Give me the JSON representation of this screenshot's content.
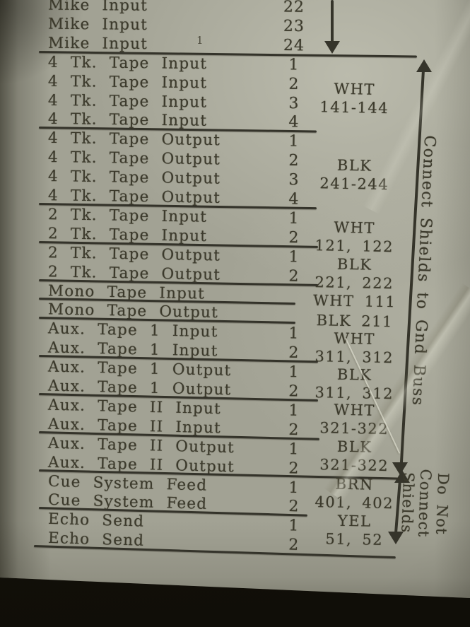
{
  "photo": {
    "description": "Photograph of a printed recording-console wiring chart lying on a dark surface",
    "colors": {
      "paper": "#a2a294",
      "ink": "#3c3a2c",
      "background": "#15120b"
    }
  },
  "document": {
    "sections": [
      {
        "rows": [
          {
            "label": "Mike Input",
            "pin": "22"
          },
          {
            "label": "Mike Input",
            "pin": "23"
          },
          {
            "label": "Mike Input",
            "pin": "24"
          }
        ]
      },
      {
        "rows": [
          {
            "label": "4 Tk. Tape Input",
            "pin": "1"
          },
          {
            "label": "4 Tk. Tape Input",
            "pin": "2"
          },
          {
            "label": "4 Tk. Tape Input",
            "pin": "3"
          },
          {
            "label": "4 Tk. Tape Input",
            "pin": "4"
          }
        ]
      },
      {
        "rows": [
          {
            "label": "4 Tk. Tape Output",
            "pin": "1"
          },
          {
            "label": "4 Tk. Tape Output",
            "pin": "2"
          },
          {
            "label": "4 Tk. Tape Output",
            "pin": "3"
          },
          {
            "label": "4 Tk. Tape Output",
            "pin": "4"
          }
        ]
      },
      {
        "rows": [
          {
            "label": "2 Tk. Tape Input",
            "pin": "1"
          },
          {
            "label": "2 Tk. Tape Input",
            "pin": "2"
          }
        ]
      },
      {
        "rows": [
          {
            "label": "2 Tk. Tape Output",
            "pin": "1"
          },
          {
            "label": "2 Tk. Tape Output",
            "pin": "2"
          }
        ]
      },
      {
        "rows": [
          {
            "label": "Mono Tape Input",
            "pin": ""
          }
        ]
      },
      {
        "rows": [
          {
            "label": "Mono Tape Output",
            "pin": ""
          }
        ]
      },
      {
        "rows": [
          {
            "label": "Aux. Tape 1 Input",
            "pin": "1"
          },
          {
            "label": "Aux. Tape 1 Input",
            "pin": "2"
          }
        ]
      },
      {
        "rows": [
          {
            "label": "Aux. Tape 1 Output",
            "pin": "1"
          },
          {
            "label": "Aux. Tape 1 Output",
            "pin": "2"
          }
        ]
      },
      {
        "rows": [
          {
            "label": "Aux. Tape II Input",
            "pin": "1"
          },
          {
            "label": "Aux. Tape II Input",
            "pin": "2"
          }
        ]
      },
      {
        "rows": [
          {
            "label": "Aux. Tape II Output",
            "pin": "1"
          },
          {
            "label": "Aux. Tape II Output",
            "pin": "2"
          }
        ]
      },
      {
        "rows": [
          {
            "label": "Cue System Feed",
            "pin": "1"
          },
          {
            "label": "Cue System Feed",
            "pin": "2"
          }
        ]
      },
      {
        "rows": [
          {
            "label": "Echo Send",
            "pin": "1"
          },
          {
            "label": "Echo Send",
            "pin": "2"
          }
        ]
      }
    ],
    "wire_codes": [
      {
        "lines": [
          "WHT",
          "141-144"
        ]
      },
      {
        "lines": [
          "BLK",
          "241-244"
        ]
      },
      {
        "lines": [
          "WHT",
          "121, 122"
        ]
      },
      {
        "lines": [
          "BLK",
          "221, 222"
        ]
      },
      {
        "lines": [
          "WHT 111"
        ]
      },
      {
        "lines": [
          "BLK 211"
        ]
      },
      {
        "lines": [
          "WHT",
          "311, 312"
        ]
      },
      {
        "lines": [
          "BLK",
          "311, 312"
        ]
      },
      {
        "lines": [
          "WHT",
          "321-322"
        ]
      },
      {
        "lines": [
          "BLK",
          "321-322"
        ]
      },
      {
        "lines": [
          "BRN",
          "401, 402"
        ]
      },
      {
        "lines": [
          "YEL",
          "51, 52"
        ]
      }
    ],
    "annotations": {
      "connect_shields": "Connect Shields to Gnd Buss",
      "do_not_lines": [
        "Do Not",
        "Connect",
        "Shields"
      ],
      "stray_mark": "1"
    }
  }
}
